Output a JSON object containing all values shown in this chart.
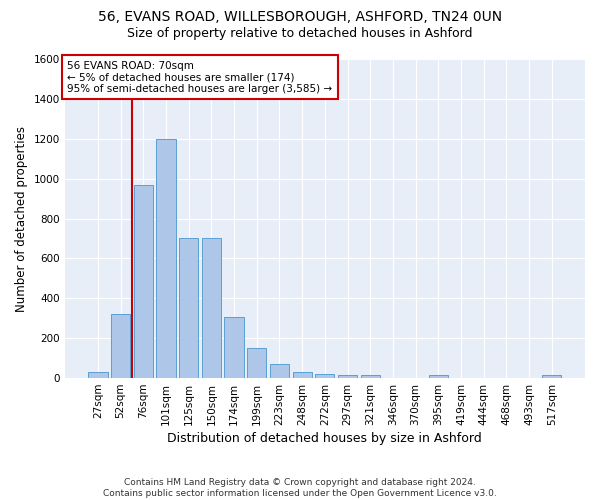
{
  "title_line1": "56, EVANS ROAD, WILLESBOROUGH, ASHFORD, TN24 0UN",
  "title_line2": "Size of property relative to detached houses in Ashford",
  "xlabel": "Distribution of detached houses by size in Ashford",
  "ylabel": "Number of detached properties",
  "footnote": "Contains HM Land Registry data © Crown copyright and database right 2024.\nContains public sector information licensed under the Open Government Licence v3.0.",
  "bar_labels": [
    "27sqm",
    "52sqm",
    "76sqm",
    "101sqm",
    "125sqm",
    "150sqm",
    "174sqm",
    "199sqm",
    "223sqm",
    "248sqm",
    "272sqm",
    "297sqm",
    "321sqm",
    "346sqm",
    "370sqm",
    "395sqm",
    "419sqm",
    "444sqm",
    "468sqm",
    "493sqm",
    "517sqm"
  ],
  "bar_values": [
    30,
    320,
    970,
    1200,
    700,
    700,
    305,
    150,
    70,
    30,
    20,
    15,
    15,
    0,
    0,
    15,
    0,
    0,
    0,
    0,
    15
  ],
  "bar_color": "#aec6e8",
  "bar_edge_color": "#5a9fd4",
  "vline_x_index": 1.5,
  "annotation_title": "56 EVANS ROAD: 70sqm",
  "annotation_line1": "← 5% of detached houses are smaller (174)",
  "annotation_line2": "95% of semi-detached houses are larger (3,585) →",
  "annotation_box_color": "#ffffff",
  "annotation_border_color": "#cc0000",
  "vline_color": "#cc0000",
  "ylim": [
    0,
    1600
  ],
  "yticks": [
    0,
    200,
    400,
    600,
    800,
    1000,
    1200,
    1400,
    1600
  ],
  "background_color": "#e8eef8",
  "grid_color": "#ffffff",
  "title1_fontsize": 10,
  "title2_fontsize": 9,
  "xlabel_fontsize": 9,
  "ylabel_fontsize": 8.5,
  "tick_fontsize": 7.5,
  "footnote_fontsize": 6.5
}
